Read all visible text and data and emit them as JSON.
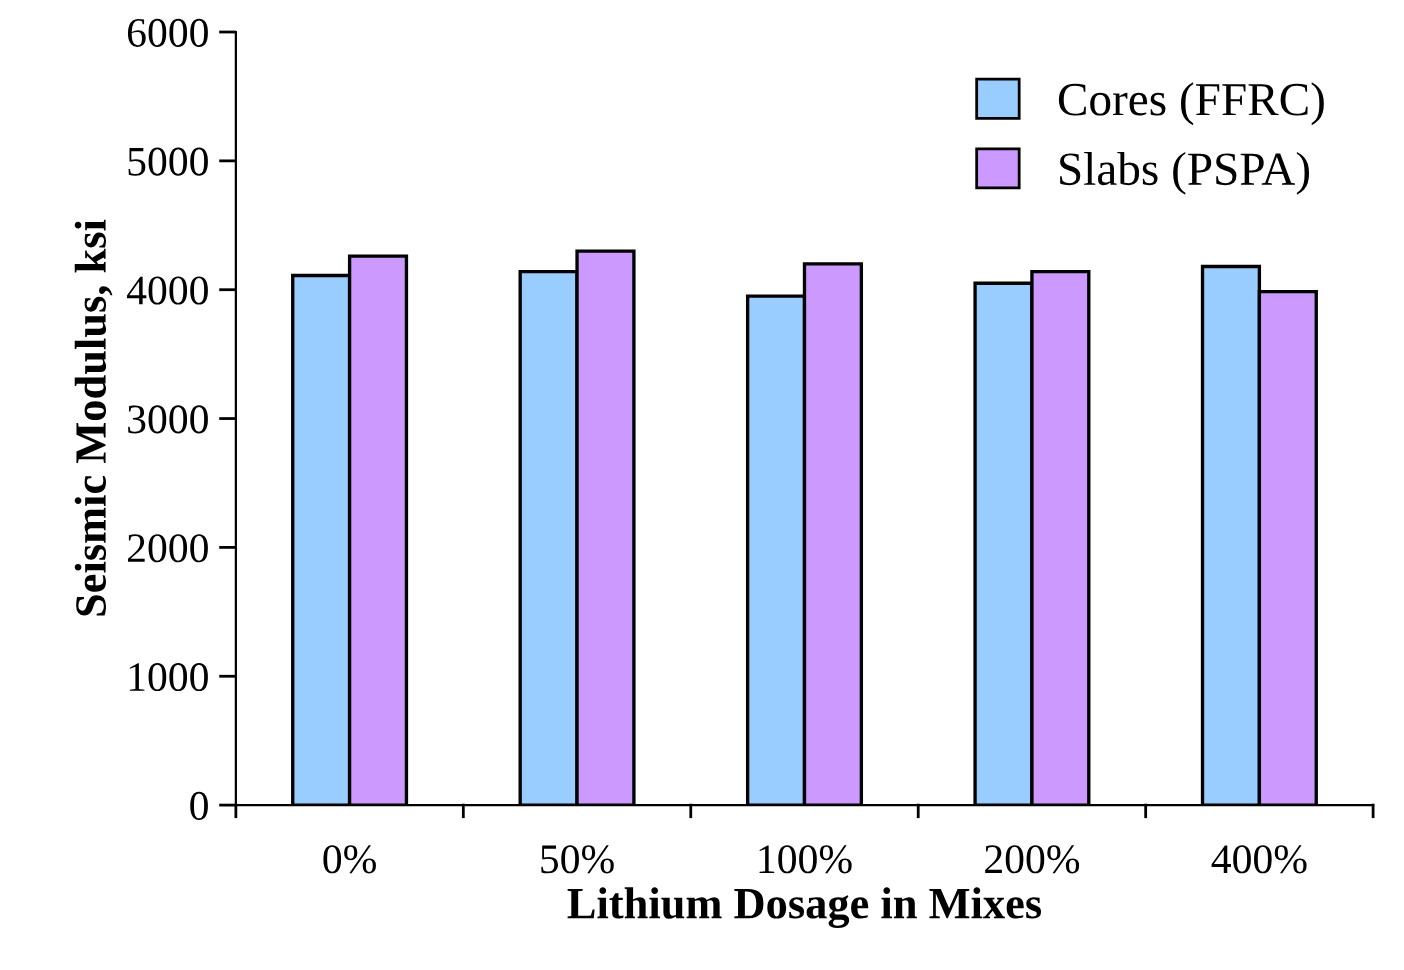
{
  "chart_data": {
    "type": "bar",
    "xlabel": "Lithium Dosage in Mixes",
    "ylabel": "Seismic Modulus, ksi",
    "categories": [
      "0%",
      "50%",
      "100%",
      "200%",
      "400%"
    ],
    "series": [
      {
        "name": "Cores (FFRC)",
        "color": "#99ccff",
        "values": [
          4110,
          4140,
          3950,
          4050,
          4180
        ]
      },
      {
        "name": "Slabs (PSPA)",
        "color": "#cc99ff",
        "values": [
          4260,
          4300,
          4200,
          4140,
          3985
        ]
      }
    ],
    "ylim": [
      0,
      6000
    ],
    "yticks": [
      0,
      1000,
      2000,
      3000,
      4000,
      5000,
      6000
    ],
    "grid": false,
    "legend": "top right"
  }
}
